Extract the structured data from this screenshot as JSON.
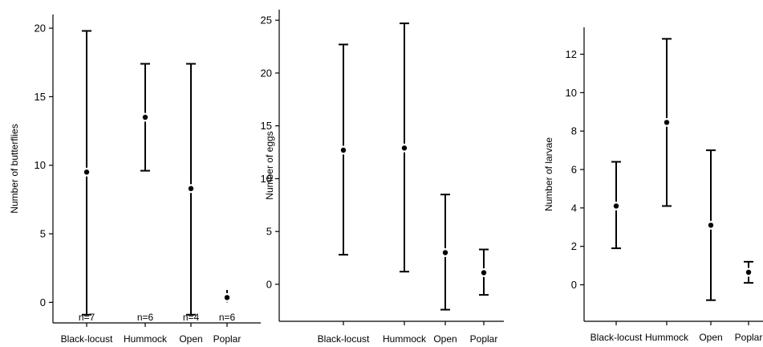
{
  "chart_data": [
    {
      "type": "errorbar",
      "ylabel": "Number of butterflies",
      "categories": [
        "Black-locust",
        "Hummock",
        "Open",
        "Poplar"
      ],
      "ylim": [
        -1.5,
        21
      ],
      "yticks": [
        "0",
        "5",
        "10",
        "15",
        "20"
      ],
      "mean": [
        9.5,
        13.5,
        8.3,
        0.35
      ],
      "lower": [
        -0.9,
        9.6,
        -0.9,
        0.0
      ],
      "upper": [
        19.8,
        17.4,
        17.4,
        0.9
      ],
      "n_labels": [
        "n=7",
        "n=6",
        "n=4",
        "n=6"
      ]
    },
    {
      "type": "errorbar",
      "ylabel": "Number of eggs",
      "categories": [
        "Black-locust",
        "Hummock",
        "Open",
        "Poplar"
      ],
      "ylim": [
        -3.5,
        26
      ],
      "yticks": [
        "0",
        "5",
        "10",
        "15",
        "20",
        "25"
      ],
      "mean": [
        12.7,
        12.9,
        3.0,
        1.1
      ],
      "lower": [
        2.8,
        1.2,
        -2.4,
        -1.0
      ],
      "upper": [
        22.7,
        24.7,
        8.5,
        3.3
      ]
    },
    {
      "type": "errorbar",
      "ylabel": "Number of larvae",
      "categories": [
        "Black-locust",
        "Hummock",
        "Open",
        "Poplar"
      ],
      "ylim": [
        -1.9,
        13.4
      ],
      "yticks": [
        "0",
        "2",
        "4",
        "6",
        "8",
        "10",
        "12"
      ],
      "mean": [
        4.1,
        8.45,
        3.1,
        0.65
      ],
      "lower": [
        1.9,
        4.1,
        -0.8,
        0.1
      ],
      "upper": [
        6.4,
        12.8,
        7.0,
        1.2
      ]
    }
  ]
}
